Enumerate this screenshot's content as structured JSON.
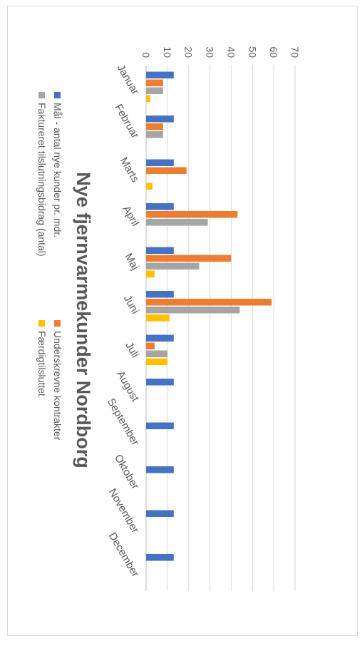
{
  "chart_data": {
    "type": "bar",
    "title": "Nye fjernvarmekunder Nordborg",
    "categories": [
      "Januar",
      "Februar",
      "Marts",
      "April",
      "Maj",
      "Juni",
      "Juli",
      "August",
      "September",
      "Oktober",
      "November",
      "December"
    ],
    "series": [
      {
        "name": "Mål - antal nye kunder pr. mdr.",
        "color": "#4472c4",
        "values": [
          13,
          13,
          13,
          13,
          13,
          13,
          13,
          13,
          13,
          13,
          13,
          13
        ]
      },
      {
        "name": "Underskrevne kontrakter",
        "color": "#ed7d31",
        "values": [
          8,
          8,
          19,
          43,
          40,
          59,
          4,
          0,
          0,
          0,
          0,
          0
        ]
      },
      {
        "name": "Faktureret tilslutningsbidrag (antal)",
        "color": "#a5a5a5",
        "values": [
          8,
          8,
          0,
          29,
          25,
          44,
          10,
          0,
          0,
          0,
          0,
          0
        ]
      },
      {
        "name": "Færdigtilsluttet",
        "color": "#ffc000",
        "values": [
          2,
          0,
          3,
          0,
          4,
          11,
          10,
          0,
          0,
          0,
          0,
          0
        ]
      }
    ],
    "ylim": [
      0,
      70
    ],
    "yticks": [
      0,
      10,
      20,
      30,
      40,
      50,
      60,
      70
    ],
    "grid": true,
    "legend_position": "bottom"
  }
}
